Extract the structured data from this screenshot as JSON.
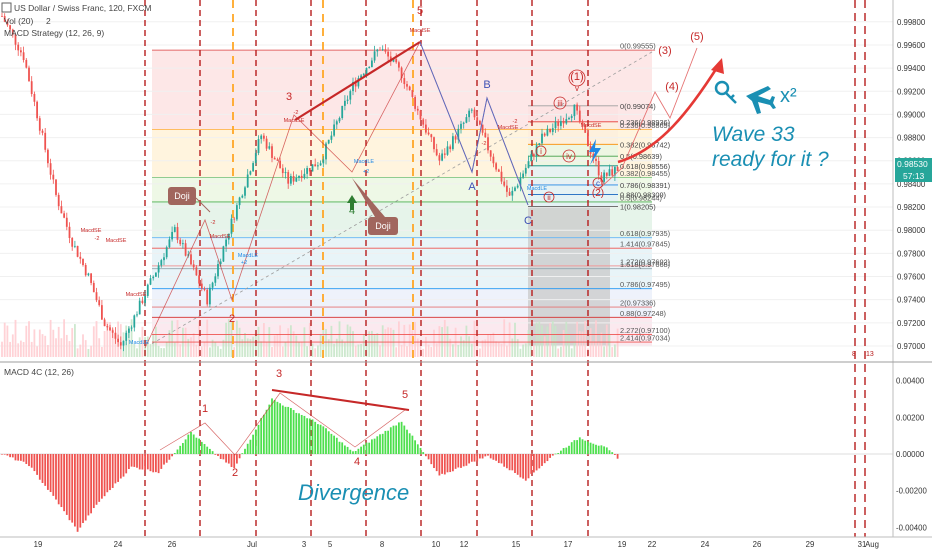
{
  "header": {
    "title": "US Dollar / Swiss Franc, 120, FXCM",
    "volume_label": "Vol (20)",
    "volume_value": "2",
    "macd_label": "MACD Strategy (12, 26, 9)",
    "macd4c_label": "MACD 4C (12, 26)"
  },
  "price_badge": {
    "value": "0.98530",
    "countdown": "57:13"
  },
  "colors": {
    "bull": "#26a69a",
    "bear": "#ef5350",
    "macd_pos": "#4ddf4d",
    "macd_neg": "#ef5350",
    "annotation_red": "#c62828",
    "annotation_blue": "#1a8fb3",
    "elliott_red": "#d32f2f"
  },
  "chart_data": [
    {
      "type": "candlestick",
      "title": "US Dollar / Swiss Franc, 120, FXCM",
      "y_axis": {
        "ylim": [
          0.97,
          0.9985
        ],
        "ticks": [
          "0.99800",
          "0.99600",
          "0.99400",
          "0.99200",
          "0.99000",
          "0.98800",
          "0.98600",
          "0.98400",
          "0.98200",
          "0.98000",
          "0.97800",
          "0.97600",
          "0.97400",
          "0.97200",
          "0.97000"
        ]
      },
      "x_axis": {
        "ticks": [
          "19",
          "24",
          "26",
          "Jul",
          "3",
          "5",
          "8",
          "10",
          "12",
          "15",
          "17",
          "19",
          "22",
          "24",
          "26",
          "29",
          "31",
          "Aug"
        ]
      },
      "price_path_keypoints": [
        {
          "t": 0,
          "price": 0.9985
        },
        {
          "t": 8,
          "price": 0.995
        },
        {
          "t": 14,
          "price": 0.989
        },
        {
          "t": 20,
          "price": 0.983
        },
        {
          "t": 26,
          "price": 0.979
        },
        {
          "t": 32,
          "price": 0.976
        },
        {
          "t": 38,
          "price": 0.972
        },
        {
          "t": 44,
          "price": 0.97
        },
        {
          "t": 56,
          "price": 0.976
        },
        {
          "t": 64,
          "price": 0.98
        },
        {
          "t": 76,
          "price": 0.974
        },
        {
          "t": 84,
          "price": 0.98
        },
        {
          "t": 96,
          "price": 0.9882
        },
        {
          "t": 106,
          "price": 0.9842
        },
        {
          "t": 118,
          "price": 0.986
        },
        {
          "t": 130,
          "price": 0.9925
        },
        {
          "t": 140,
          "price": 0.9958
        },
        {
          "t": 148,
          "price": 0.9935
        },
        {
          "t": 162,
          "price": 0.986
        },
        {
          "t": 174,
          "price": 0.9903
        },
        {
          "t": 188,
          "price": 0.9828
        },
        {
          "t": 200,
          "price": 0.988
        },
        {
          "t": 212,
          "price": 0.9905
        },
        {
          "t": 222,
          "price": 0.9845
        },
        {
          "t": 228,
          "price": 0.9853
        }
      ],
      "fib_levels_upper": [
        {
          "label": "0(0.99074)",
          "price": 0.99074
        },
        {
          "label": "0.236(0.98936)",
          "price": 0.98936
        },
        {
          "label": "0.382(0.98742)",
          "price": 0.98742
        },
        {
          "label": "0.5(0.98639)",
          "price": 0.98639
        },
        {
          "label": "0.618(0.98556)",
          "price": 0.98556
        },
        {
          "label": "0.786(0.98391)",
          "price": 0.98391
        },
        {
          "label": "0.88(0.98309)",
          "price": 0.98309
        },
        {
          "label": "1(0.98205)",
          "price": 0.98205
        }
      ],
      "fib_levels_lower": [
        {
          "label": "0(0.99555)",
          "price": 0.99555
        },
        {
          "label": "0.236(0.98869)",
          "price": 0.98869
        },
        {
          "label": "0.382(0.98455)",
          "price": 0.98455
        },
        {
          "label": "0.5(0.98244)",
          "price": 0.98244
        },
        {
          "label": "0.618(0.97935)",
          "price": 0.97935
        },
        {
          "label": "1.272(0.97692)",
          "price": 0.97692
        },
        {
          "label": "1.414(0.97845)",
          "price": 0.97845
        },
        {
          "label": "1.618(0.97668)",
          "price": 0.97668
        },
        {
          "label": "0.786(0.97495)",
          "price": 0.97495
        },
        {
          "label": "2(0.97336)",
          "price": 0.97336
        },
        {
          "label": "0.88(0.97248)",
          "price": 0.97248
        },
        {
          "label": "2.272(0.97100)",
          "price": 0.971
        },
        {
          "label": "2.414(0.97034)",
          "price": 0.97034
        }
      ]
    },
    {
      "type": "bar",
      "title": "MACD 4C (12, 26)",
      "y_axis": {
        "ylim": [
          -0.0045,
          0.0045
        ],
        "ticks": [
          "0.00400",
          "0.00200",
          "0.00000",
          "-0.00200",
          "-0.00400"
        ]
      },
      "histogram_keypoints": [
        {
          "t": 0,
          "value": 0
        },
        {
          "t": 10,
          "value": -0.0006
        },
        {
          "t": 20,
          "value": -0.0025
        },
        {
          "t": 28,
          "value": -0.0042
        },
        {
          "t": 36,
          "value": -0.0026
        },
        {
          "t": 48,
          "value": -0.0007
        },
        {
          "t": 58,
          "value": -0.001
        },
        {
          "t": 70,
          "value": 0.0012
        },
        {
          "t": 78,
          "value": 0.0001
        },
        {
          "t": 86,
          "value": -0.0008
        },
        {
          "t": 100,
          "value": 0.003
        },
        {
          "t": 118,
          "value": 0.0016
        },
        {
          "t": 130,
          "value": 0.0001
        },
        {
          "t": 148,
          "value": 0.0018
        },
        {
          "t": 162,
          "value": -0.0012
        },
        {
          "t": 180,
          "value": -0.0001
        },
        {
          "t": 194,
          "value": -0.0014
        },
        {
          "t": 204,
          "value": -0.0001
        },
        {
          "t": 214,
          "value": 0.0009
        },
        {
          "t": 224,
          "value": 0.0003
        },
        {
          "t": 228,
          "value": -0.0002
        }
      ]
    }
  ],
  "annotations": {
    "wave_text": "Wave 33",
    "ready_text": "ready for it ?",
    "divergence_text": "Divergence",
    "doji_label": "Doji",
    "wave_labels": [
      "1",
      "2",
      "3",
      "4",
      "5",
      "A",
      "B",
      "C"
    ],
    "roman_labels": [
      "(1)",
      "(2)",
      "(3)",
      "(4)",
      "(5)",
      "i",
      "ii",
      "iii",
      "iv",
      "v"
    ],
    "macd_labels": [
      "1",
      "2",
      "3",
      "4",
      "5"
    ],
    "signal_labels": [
      "MacdSE",
      "MacdLE",
      "+2",
      "-2"
    ],
    "key_icon": "key-icon",
    "plane_icon": "airplane-icon",
    "x_squared": "x²"
  }
}
